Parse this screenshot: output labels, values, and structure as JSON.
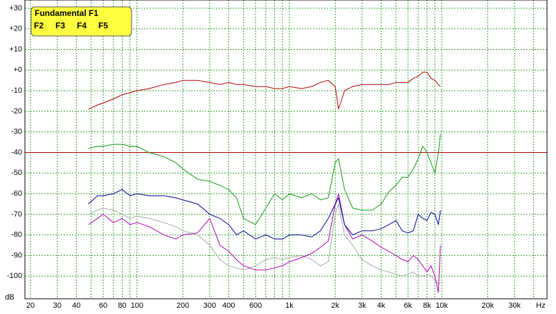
{
  "chart_data": {
    "type": "line",
    "x_label": "Hz",
    "y_label": "dB",
    "log_x": true,
    "grid": true,
    "legend": "top-left",
    "xlim": [
      18.4,
      49000
    ],
    "ylim": [
      -111,
      34
    ],
    "xticks": [
      20,
      30,
      40,
      60,
      80,
      100,
      200,
      300,
      400,
      600,
      {
        "value": 1000,
        "label": "1k"
      },
      {
        "value": 2000,
        "label": "2k"
      },
      {
        "value": 3000,
        "label": "3k"
      },
      {
        "value": 4000,
        "label": "4k"
      },
      {
        "value": 6000,
        "label": "6k"
      },
      {
        "value": 8000,
        "label": "8k"
      },
      {
        "value": 10000,
        "label": "10k"
      },
      {
        "value": 20000,
        "label": "20k"
      },
      {
        "value": 30000,
        "label": "30k"
      }
    ],
    "xgrid_minor": [
      50,
      70,
      90,
      500,
      700,
      800,
      900,
      5000,
      7000,
      9000,
      40000
    ],
    "yticks": [
      {
        "value": 30,
        "label": "+30"
      },
      {
        "value": 20,
        "label": "+20"
      },
      {
        "value": 10,
        "label": "+10"
      },
      {
        "value": 0,
        "label": "+0"
      },
      -10,
      -20,
      -30,
      -40,
      -50,
      -60,
      -70,
      -80,
      -90,
      -100
    ],
    "reference_line": {
      "value": -40,
      "color": "#b00000"
    },
    "x": [
      48,
      55,
      60,
      70,
      80,
      90,
      100,
      120,
      150,
      180,
      200,
      250,
      300,
      350,
      400,
      450,
      500,
      600,
      700,
      800,
      900,
      1000,
      1200,
      1400,
      1600,
      1800,
      2000,
      2100,
      2300,
      2600,
      3000,
      3500,
      4000,
      4500,
      5000,
      5500,
      6000,
      6500,
      7000,
      7500,
      8000,
      8500,
      9000,
      9500,
      9800
    ],
    "series": [
      {
        "name": "Fundamental F1",
        "color": "#b00000",
        "values": [
          -19,
          -17,
          -16,
          -14,
          -12,
          -11,
          -10,
          -9,
          -7,
          -6,
          -5,
          -5,
          -6,
          -7,
          -6,
          -7,
          -7,
          -8,
          -8,
          -9,
          -9,
          -8,
          -9,
          -8,
          -6,
          -5,
          -8,
          -19,
          -10,
          -8,
          -7,
          -7,
          -7,
          -7,
          -6,
          -6,
          -6,
          -4,
          -3,
          -1,
          -1,
          -4,
          -5,
          -7,
          -8
        ]
      },
      {
        "name": "F2",
        "color": "#129912",
        "values": [
          -38,
          -37,
          -37,
          -36,
          -36,
          -37,
          -37,
          -40,
          -42,
          -45,
          -48,
          -53,
          -54,
          -56,
          -58,
          -62,
          -72,
          -75,
          -67,
          -60,
          -63,
          -60,
          -62,
          -60,
          -63,
          -62,
          -45,
          -43,
          -58,
          -67,
          -68,
          -68,
          -65,
          -59,
          -56,
          -52,
          -52,
          -48,
          -43,
          -37,
          -40,
          -45,
          -50,
          -40,
          -31
        ]
      },
      {
        "name": "F3",
        "color": "#000090",
        "values": [
          -65,
          -61,
          -61,
          -60,
          -58,
          -61,
          -60,
          -61,
          -61,
          -62,
          -63,
          -65,
          -70,
          -72,
          -75,
          -80,
          -78,
          -82,
          -80,
          -82,
          -82,
          -80,
          -80,
          -81,
          -78,
          -72,
          -65,
          -62,
          -75,
          -80,
          -78,
          -78,
          -77,
          -75,
          -73,
          -78,
          -79,
          -78,
          -70,
          -72,
          -73,
          -69,
          -70,
          -75,
          -68
        ]
      },
      {
        "name": "F4",
        "color": "#b000b0",
        "values": [
          -75,
          -72,
          -70,
          -74,
          -72,
          -75,
          -74,
          -76,
          -80,
          -82,
          -80,
          -79,
          -72,
          -85,
          -88,
          -92,
          -95,
          -97,
          -97,
          -96,
          -95,
          -93,
          -91,
          -89,
          -86,
          -83,
          -65,
          -60,
          -75,
          -82,
          -80,
          -83,
          -86,
          -88,
          -90,
          -92,
          -93,
          -90,
          -92,
          -95,
          -98,
          -95,
          -100,
          -108,
          -85
        ]
      },
      {
        "name": "F5",
        "color": "#a8a8a8",
        "values": [
          -70,
          -68,
          -67,
          -68,
          -70,
          -72,
          -71,
          -72,
          -74,
          -76,
          -78,
          -80,
          -85,
          -92,
          -95,
          -96,
          -97,
          -95,
          -92,
          -91,
          -92,
          -91,
          -90,
          -92,
          -95,
          -93,
          -70,
          -65,
          -80,
          -85,
          -92,
          -95,
          -97,
          -98,
          -99,
          -100,
          -99,
          -98,
          -100,
          -100,
          -99,
          -100,
          -102,
          -104,
          -103
        ]
      }
    ]
  }
}
